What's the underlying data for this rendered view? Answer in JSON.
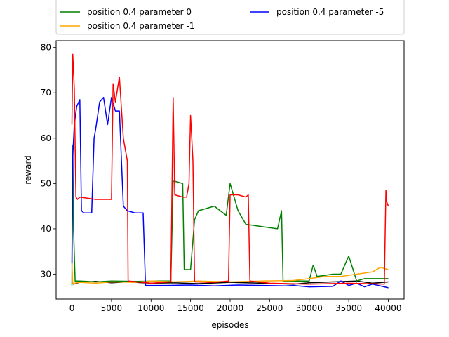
{
  "chart_data": {
    "type": "line",
    "title": "",
    "xlabel": "episodes",
    "ylabel": "reward",
    "xlim": [
      -2000,
      42000
    ],
    "ylim": [
      24.5,
      81.5
    ],
    "xticks": [
      0,
      5000,
      10000,
      15000,
      20000,
      25000,
      30000,
      35000,
      40000
    ],
    "yticks": [
      30,
      40,
      50,
      60,
      70,
      80
    ],
    "grid": false,
    "legend": {
      "placement": "top (partially cut off)",
      "ncol": 2
    },
    "series": [
      {
        "name": "",
        "color": "#000000",
        "x": [
          0,
          200,
          1000,
          3000,
          5000,
          7000,
          10000,
          13000,
          16000,
          20000,
          24000,
          28000,
          30000,
          33000,
          36000,
          38000,
          40000
        ],
        "y": [
          28,
          27.8,
          28.2,
          28.4,
          28.1,
          28.3,
          28.0,
          28.1,
          27.9,
          28.2,
          28.0,
          27.8,
          28.1,
          28.3,
          28.5,
          28.0,
          28.3
        ]
      },
      {
        "name": "position 0.4 parameter 0",
        "color": "#008000",
        "x": [
          0,
          100,
          200,
          400,
          1000,
          3000,
          5000,
          8000,
          11000,
          12500,
          12800,
          13000,
          14000,
          14200,
          14500,
          15000,
          15500,
          16000,
          18000,
          19500,
          20000,
          21000,
          22000,
          24000,
          26000,
          26500,
          26700,
          30000,
          30500,
          31000,
          33000,
          34000,
          35000,
          36000,
          37000,
          40000
        ],
        "y": [
          27.5,
          58.5,
          40,
          28.5,
          28.5,
          28.3,
          28.5,
          28.4,
          28.5,
          28.5,
          50.5,
          50.5,
          50,
          31,
          31,
          31,
          42,
          44,
          45,
          43,
          50,
          44,
          41,
          40.5,
          40,
          44,
          28.5,
          28.5,
          32,
          29.5,
          30,
          30,
          34,
          28.5,
          29,
          29
        ]
      },
      {
        "name": "position 0.4 parameter -1",
        "color": "#ffa500",
        "x": [
          0,
          100,
          300,
          1000,
          3000,
          5000,
          8000,
          10000,
          13000,
          16000,
          20000,
          24000,
          28000,
          30000,
          32000,
          34000,
          36000,
          38000,
          39000,
          40000
        ],
        "y": [
          32.5,
          28,
          28,
          28.2,
          28,
          28.3,
          28.2,
          28.5,
          28.3,
          28.5,
          28.3,
          28.5,
          28.6,
          29,
          29.5,
          29.5,
          30,
          30.5,
          31.5,
          31
        ]
      },
      {
        "name": "position 0.4 parameter -5",
        "color": "#0000ff",
        "x": [
          0,
          100,
          300,
          600,
          1000,
          1200,
          1500,
          2500,
          2800,
          3000,
          3500,
          4000,
          4500,
          5000,
          5500,
          6000,
          6500,
          7000,
          8000,
          9000,
          9300,
          9500,
          12000,
          15000,
          18000,
          21000,
          24000,
          27000,
          28000,
          30000,
          33000,
          34000,
          35000,
          36000,
          37000,
          38000,
          40000
        ],
        "y": [
          32.5,
          56,
          63,
          67,
          68.5,
          44,
          43.5,
          43.5,
          60,
          62,
          68,
          69,
          63,
          69,
          66,
          66,
          45,
          44,
          43.5,
          43.5,
          27.5,
          27.5,
          27.5,
          27.6,
          27.4,
          27.6,
          27.5,
          27.4,
          27.5,
          27.2,
          27.3,
          28.5,
          27.5,
          28,
          27.2,
          27.8,
          27
        ]
      },
      {
        "name": "",
        "color": "#ff0000",
        "x": [
          0,
          100,
          300,
          500,
          700,
          1000,
          3000,
          4500,
          5000,
          5200,
          5500,
          6000,
          6500,
          7000,
          7100,
          10000,
          12500,
          12800,
          13000,
          14000,
          14500,
          14800,
          15000,
          15300,
          15500,
          15600,
          18000,
          19800,
          20000,
          21000,
          22000,
          22300,
          22500,
          25000,
          30000,
          35000,
          39500,
          39700,
          39800,
          40000
        ],
        "y": [
          63,
          78.5,
          71,
          47,
          46.5,
          47,
          46.5,
          46.5,
          46.5,
          72,
          68,
          73.5,
          60,
          55,
          28.5,
          28,
          28.3,
          69,
          47.5,
          47,
          47,
          50,
          65,
          55,
          28.5,
          28.3,
          28.2,
          28.5,
          47.5,
          47.5,
          47,
          47.5,
          28.5,
          28,
          27.8,
          28,
          27.8,
          48.5,
          46,
          45
        ]
      }
    ]
  }
}
